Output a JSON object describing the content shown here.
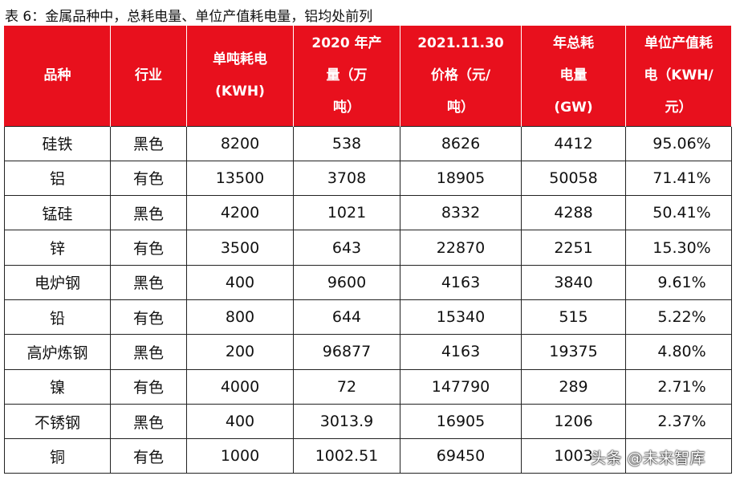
{
  "caption": "表 6：金属品种中，总耗电量、单位产值耗电量，铝均处前列",
  "headers": [
    "品种",
    "行业",
    "单吨耗电\n(KWH)",
    "2020 年产\n量（万\n吨）",
    "2021.11.30\n价格（元/\n吨）",
    "年总耗\n电量\n(GW)",
    "单位产值耗\n电（KWH/\n元）"
  ],
  "rows": [
    [
      "硅铁",
      "黑色",
      "8200",
      "538",
      "8626",
      "4412",
      "95.06%"
    ],
    [
      "铝",
      "有色",
      "13500",
      "3708",
      "18905",
      "50058",
      "71.41%"
    ],
    [
      "锰硅",
      "黑色",
      "4200",
      "1021",
      "8332",
      "4288",
      "50.41%"
    ],
    [
      "锌",
      "有色",
      "3500",
      "643",
      "22870",
      "2251",
      "15.30%"
    ],
    [
      "电炉钢",
      "黑色",
      "400",
      "9600",
      "4163",
      "3840",
      "9.61%"
    ],
    [
      "铅",
      "有色",
      "800",
      "644",
      "15340",
      "515",
      "5.22%"
    ],
    [
      "高炉炼钢",
      "黑色",
      "200",
      "96877",
      "4163",
      "19375",
      "4.80%"
    ],
    [
      "镍",
      "有色",
      "4000",
      "72",
      "147790",
      "289",
      "2.71%"
    ],
    [
      "不锈钢",
      "黑色",
      "400",
      "3013.9",
      "16905",
      "1206",
      "2.37%"
    ],
    [
      "铜",
      "有色",
      "1000",
      "1002.51",
      "69450",
      "1003",
      ""
    ]
  ],
  "watermark": "头条 @未来智库",
  "colors": {
    "header_bg": "#e8101d",
    "header_text": "#ffffff",
    "border": "#222222"
  }
}
